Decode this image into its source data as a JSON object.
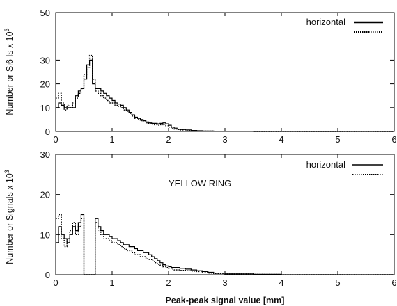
{
  "chart_data": [
    {
      "type": "line",
      "panel": "top",
      "title": "",
      "xlabel": "",
      "ylabel": "Number or Signals x 10^3",
      "ylabel_text": "Number or Si6 ls x 10",
      "ylabel_sup": "3",
      "xlim": [
        0,
        6
      ],
      "ylim": [
        0,
        50
      ],
      "x_ticks": [
        "0",
        "1",
        "2",
        "3",
        "4",
        "5",
        "6"
      ],
      "y_ticks": [
        "0",
        "10",
        "20",
        "30",
        "50"
      ],
      "y_tick_values": [
        0,
        10,
        20,
        30,
        50
      ],
      "step_style": "histogram",
      "legend": {
        "position": "top-right",
        "label": "horizontal"
      },
      "series": [
        {
          "name": "horizontal",
          "style": "solid",
          "x": [
            0.0,
            0.05,
            0.1,
            0.15,
            0.2,
            0.25,
            0.3,
            0.35,
            0.4,
            0.45,
            0.5,
            0.55,
            0.6,
            0.65,
            0.7,
            0.75,
            0.8,
            0.85,
            0.9,
            0.95,
            1.0,
            1.05,
            1.1,
            1.15,
            1.2,
            1.25,
            1.3,
            1.35,
            1.4,
            1.45,
            1.5,
            1.55,
            1.6,
            1.65,
            1.7,
            1.75,
            1.8,
            1.85,
            1.9,
            1.95,
            2.0,
            2.05,
            2.1,
            2.15,
            2.2,
            2.3,
            2.4,
            2.5,
            2.6,
            2.8,
            3.0,
            3.5,
            4.0,
            5.0,
            6.0
          ],
          "values": [
            10,
            12,
            11,
            10,
            10,
            10,
            10,
            15,
            17,
            18,
            22,
            28,
            30,
            20,
            18,
            18,
            17,
            16,
            15,
            14,
            13,
            12,
            11.5,
            11,
            10,
            9,
            8,
            7,
            6,
            5.5,
            5,
            4.5,
            4,
            3.6,
            3.4,
            3.4,
            3.2,
            3.4,
            3.6,
            3.2,
            2.6,
            1.8,
            1.4,
            1.0,
            0.8,
            0.6,
            0.4,
            0.3,
            0.2,
            0.1,
            0.05,
            0,
            0,
            0,
            0
          ]
        },
        {
          "name": "",
          "style": "dotted",
          "x": [
            0.0,
            0.05,
            0.1,
            0.15,
            0.2,
            0.25,
            0.3,
            0.35,
            0.4,
            0.45,
            0.5,
            0.55,
            0.6,
            0.65,
            0.7,
            0.75,
            0.8,
            0.85,
            0.9,
            0.95,
            1.0,
            1.05,
            1.1,
            1.15,
            1.2,
            1.25,
            1.3,
            1.35,
            1.4,
            1.45,
            1.5,
            1.55,
            1.6,
            1.65,
            1.7,
            1.75,
            1.8,
            1.85,
            1.9,
            1.95,
            2.0,
            2.05,
            2.1,
            2.15,
            2.2,
            2.3,
            2.4,
            2.5,
            2.6,
            2.8,
            3.0,
            3.5,
            4.0,
            5.0,
            6.0
          ],
          "values": [
            14,
            16,
            12,
            9,
            11,
            10,
            12,
            14,
            16,
            18,
            24,
            27,
            32,
            22,
            17,
            16,
            15,
            14,
            13,
            12,
            12,
            11,
            10.5,
            10,
            9,
            8.5,
            7.5,
            6.5,
            5.5,
            5,
            4.5,
            4,
            3.6,
            3.2,
            3,
            2.8,
            2.6,
            2.8,
            3,
            2.4,
            1.8,
            1.2,
            1.0,
            0.8,
            0.6,
            0.4,
            0.3,
            0.2,
            0.15,
            0.1,
            0.05,
            0,
            0,
            0,
            0
          ]
        }
      ]
    },
    {
      "type": "line",
      "panel": "bottom",
      "title": "",
      "annotation": "YELLOW RING",
      "xlabel": "Peak-peak signal value [mm]",
      "ylabel": "Number or Signals x 10^3",
      "ylabel_text": "Number or Signals x 10",
      "ylabel_sup": "3",
      "xlim": [
        0,
        6
      ],
      "ylim": [
        0,
        30
      ],
      "x_ticks": [
        "0",
        "1",
        "2",
        "3",
        "4",
        "5",
        "6"
      ],
      "y_ticks": [
        "0",
        "10",
        "20",
        "30"
      ],
      "y_tick_values": [
        0,
        10,
        20,
        30
      ],
      "step_style": "histogram",
      "legend": {
        "position": "top-right",
        "label": "horizontal"
      },
      "series": [
        {
          "name": "horizontal",
          "style": "solid",
          "x": [
            0.0,
            0.05,
            0.1,
            0.15,
            0.2,
            0.25,
            0.3,
            0.35,
            0.4,
            0.45,
            0.5,
            0.55,
            0.6,
            0.65,
            0.7,
            0.75,
            0.8,
            0.85,
            0.9,
            0.95,
            1.0,
            1.05,
            1.1,
            1.15,
            1.2,
            1.25,
            1.3,
            1.35,
            1.4,
            1.45,
            1.5,
            1.55,
            1.6,
            1.65,
            1.7,
            1.75,
            1.8,
            1.85,
            1.9,
            1.95,
            2.0,
            2.05,
            2.1,
            2.2,
            2.3,
            2.4,
            2.5,
            2.6,
            2.7,
            2.8,
            3.0,
            3.5,
            4.0,
            5.0,
            6.0
          ],
          "values": [
            8,
            12,
            10,
            9,
            8,
            10,
            12,
            11,
            13,
            15,
            0,
            0,
            0,
            0,
            14,
            12,
            11,
            10,
            10,
            9.5,
            9,
            9,
            8.5,
            8,
            7.5,
            7.5,
            7,
            7,
            6.5,
            6,
            6,
            5.5,
            5.5,
            5,
            4.5,
            4,
            3.5,
            3,
            2.5,
            2.2,
            2,
            1.8,
            1.8,
            1.6,
            1.4,
            1.2,
            1,
            0.8,
            0.6,
            0.4,
            0.2,
            0.1,
            0,
            0,
            0
          ]
        },
        {
          "name": "",
          "style": "dotted",
          "x": [
            0.0,
            0.05,
            0.1,
            0.15,
            0.2,
            0.25,
            0.3,
            0.35,
            0.4,
            0.45,
            0.5,
            0.55,
            0.6,
            0.65,
            0.7,
            0.75,
            0.8,
            0.85,
            0.9,
            0.95,
            1.0,
            1.05,
            1.1,
            1.15,
            1.2,
            1.25,
            1.3,
            1.35,
            1.4,
            1.45,
            1.5,
            1.55,
            1.6,
            1.65,
            1.7,
            1.75,
            1.8,
            1.85,
            1.9,
            1.95,
            2.0,
            2.05,
            2.1,
            2.2,
            2.3,
            2.4,
            2.5,
            2.6,
            2.7,
            2.8,
            3.0,
            3.5,
            4.0,
            5.0,
            6.0
          ],
          "values": [
            14,
            15,
            9,
            7,
            9,
            11,
            13,
            10,
            12,
            14,
            0,
            0,
            0,
            0,
            13,
            11,
            10,
            9,
            9,
            8.5,
            8,
            8,
            7.5,
            7,
            6.5,
            6,
            6,
            5.5,
            5,
            5,
            4.5,
            4.5,
            4,
            3.8,
            3.5,
            3,
            2.6,
            2.4,
            2,
            1.8,
            1.6,
            1.4,
            1.2,
            1.1,
            1,
            0.9,
            0.8,
            0.6,
            0.4,
            0.3,
            0.2,
            0.1,
            0,
            0,
            0
          ]
        }
      ]
    }
  ]
}
